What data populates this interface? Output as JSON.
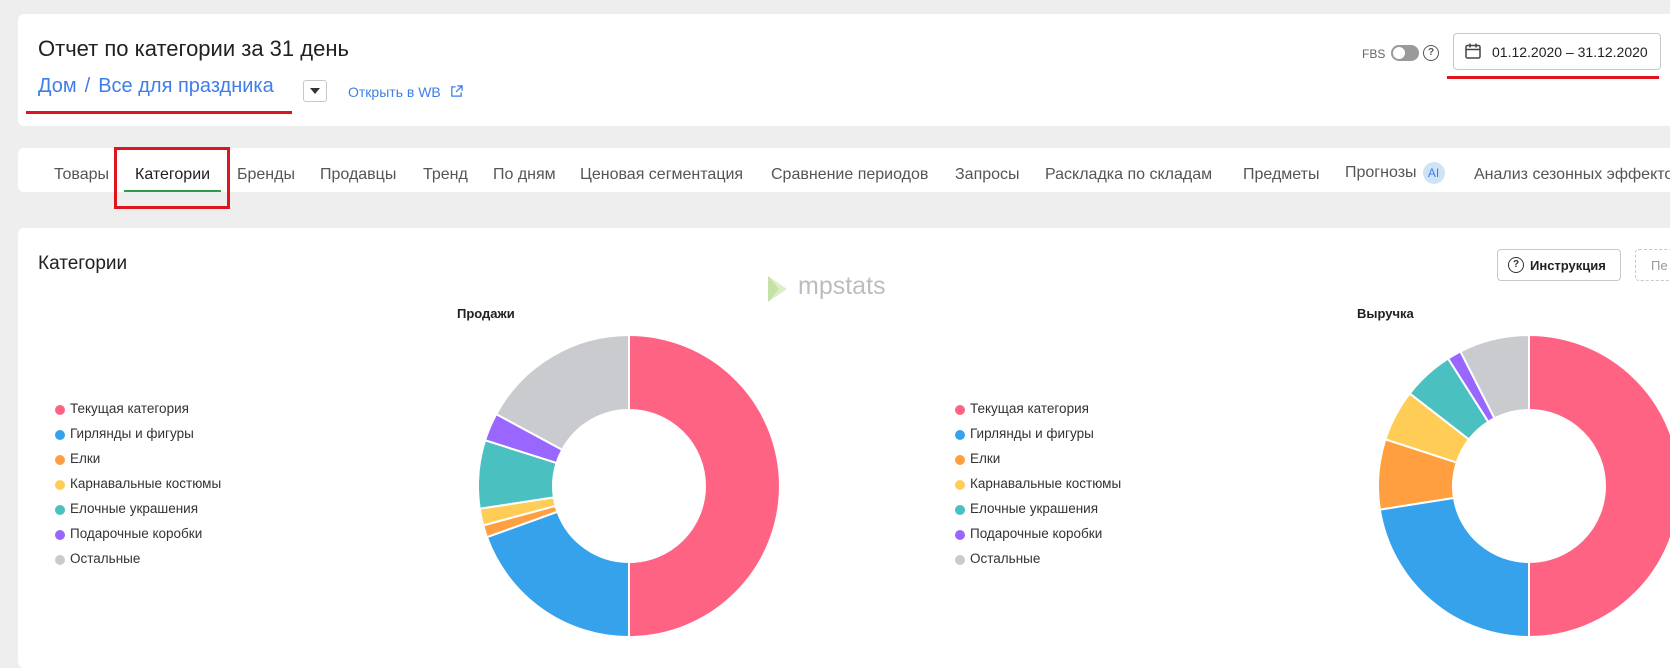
{
  "header": {
    "title": "Отчет по категории за 31 день",
    "breadcrumb": [
      "Дом",
      "Все для праздника"
    ],
    "breadcrumb_sep": "/",
    "open_wb_label": "Открыть в WB",
    "fbs_label": "FBS",
    "fbs_help": "?",
    "date_range": "01.12.2020 – 31.12.2020"
  },
  "tabs": [
    {
      "label": "Товары"
    },
    {
      "label": "Категории",
      "active": true
    },
    {
      "label": "Бренды"
    },
    {
      "label": "Продавцы"
    },
    {
      "label": "Тренд"
    },
    {
      "label": "По дням"
    },
    {
      "label": "Ценовая сегментация"
    },
    {
      "label": "Сравнение периодов"
    },
    {
      "label": "Запросы"
    },
    {
      "label": "Раскладка по складам"
    },
    {
      "label": "Предметы"
    },
    {
      "label": "Прогнозы",
      "badge": "AI"
    },
    {
      "label": "Анализ сезонных эффектов"
    }
  ],
  "section": {
    "title": "Категории",
    "instruction_label": "Инструкция",
    "extra_button_label": "Пе"
  },
  "watermark": "mpstats",
  "legend": [
    {
      "label": "Текущая категория",
      "color": "#ff6384"
    },
    {
      "label": "Гирлянды и фигуры",
      "color": "#36a2eb"
    },
    {
      "label": "Елки",
      "color": "#ff9f40"
    },
    {
      "label": "Карнавальные костюмы",
      "color": "#ffcd56"
    },
    {
      "label": "Елочные украшения",
      "color": "#4bc0c0"
    },
    {
      "label": "Подарочные коробки",
      "color": "#9966ff"
    },
    {
      "label": "Остальные",
      "color": "#c9cbcf"
    }
  ],
  "chart_data": [
    {
      "type": "pie",
      "title": "Продажи",
      "categories": [
        "Текущая категория",
        "Гирлянды и фигуры",
        "Елки",
        "Карнавальные костюмы",
        "Елочные украшения",
        "Подарочные коробки",
        "Остальные"
      ],
      "values": [
        50,
        19.5,
        1.3,
        1.8,
        7.3,
        3.0,
        17.1
      ],
      "colors": [
        "#ff6384",
        "#36a2eb",
        "#ff9f40",
        "#ffcd56",
        "#4bc0c0",
        "#9966ff",
        "#c9cbcf"
      ]
    },
    {
      "type": "pie",
      "title": "Выручка",
      "categories": [
        "Текущая категория",
        "Гирлянды и фигуры",
        "Елки",
        "Карнавальные костюмы",
        "Елочные украшения",
        "Подарочные коробки",
        "Остальные"
      ],
      "values": [
        50,
        22.5,
        7.5,
        5.5,
        5.5,
        1.5,
        7.5
      ],
      "colors": [
        "#ff6384",
        "#36a2eb",
        "#ff9f40",
        "#ffcd56",
        "#4bc0c0",
        "#9966ff",
        "#c9cbcf"
      ]
    }
  ]
}
